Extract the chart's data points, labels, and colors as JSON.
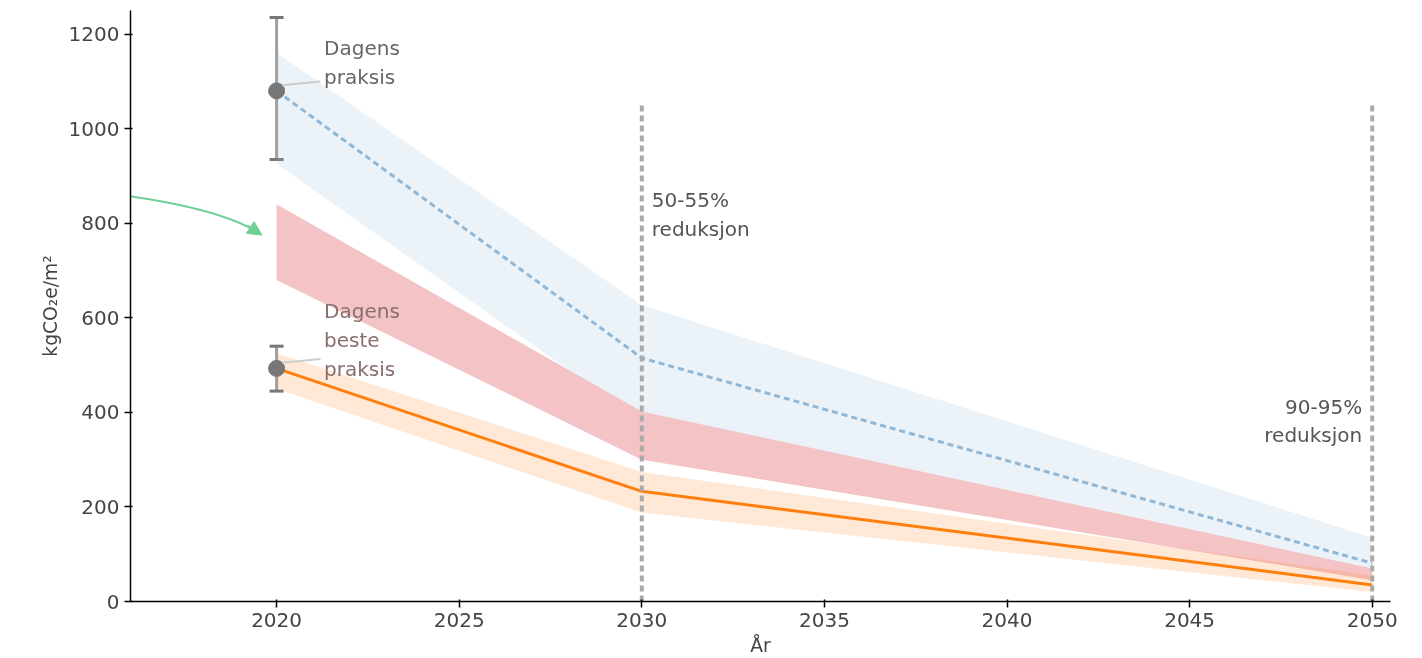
{
  "chart_data": {
    "type": "line",
    "xlabel": "År",
    "ylabel": "kgCO₂e/m²",
    "x": [
      2020,
      2030,
      2050
    ],
    "series": [
      {
        "color": "#8fb8d8",
        "values": [
          1080,
          515,
          81
        ],
        "lower": [
          926,
          380,
          60
        ],
        "upper": [
          1160,
          627,
          135
        ],
        "line_style": "dashed"
      },
      {
        "type": "area",
        "color": "#f4c3c6",
        "values": [
          null,
          null,
          null
        ],
        "lower": [
          680,
          300,
          45
        ],
        "upper": [
          840,
          402,
          70
        ]
      },
      {
        "color": "#ff7f0e",
        "values": [
          493,
          233,
          35
        ],
        "lower": [
          450,
          188,
          20
        ],
        "upper": [
          525,
          274,
          55
        ],
        "line_style": "solid"
      },
      {
        "type": "scatter",
        "color": "#777777",
        "x": [
          2020
        ],
        "values": [
          1080
        ],
        "errors": [
          [
            935,
            1235
          ]
        ],
        "marker": "circle"
      },
      {
        "type": "scatter",
        "color": "#777777",
        "x": [
          2020
        ],
        "values": [
          493
        ],
        "errors": [
          [
            445,
            540
          ]
        ],
        "marker": "circle"
      }
    ],
    "xlim": [
      2016,
      2050.5
    ],
    "ylim": [
      0,
      1250
    ],
    "xticks": [
      2020,
      2025,
      2030,
      2035,
      2040,
      2045,
      2050
    ],
    "yticks": [
      0,
      200,
      400,
      600,
      800,
      1000,
      1200
    ],
    "ref_lines": [
      {
        "axis": "x",
        "value": 2030,
        "label": "50-55%\nreduksjon",
        "color": "#aaaaaa",
        "line_style": "dashed"
      },
      {
        "axis": "x",
        "value": 2050,
        "label": "90-95%\nreduksjon",
        "color": "#aaaaaa",
        "line_style": "dashed"
      }
    ],
    "annotations": [
      {
        "text": "Dagens\npraksis",
        "x": 2020,
        "y": 1080
      },
      {
        "text": "Dagens\nbeste\npraksis",
        "x": 2020,
        "y": 493
      }
    ],
    "grid": false
  }
}
